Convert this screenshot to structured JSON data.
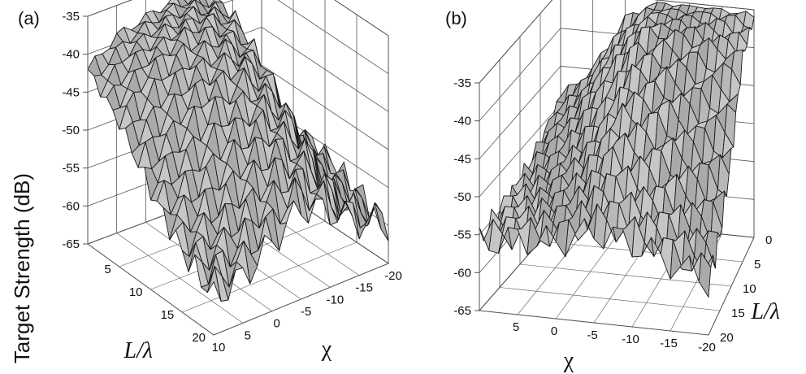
{
  "figure": {
    "ylabel": "Target Strength (dB)",
    "panels": [
      "(a)",
      "(b)"
    ]
  },
  "colors": {
    "surface": "#b8b8b8",
    "mesh": "#1a1a1a",
    "grid": "#555555",
    "text": "#111111"
  },
  "chart_data": [
    {
      "type": "surface",
      "panel": "(a)",
      "zlabel": "Target Strength (dB)",
      "xlabel": "χ",
      "ylabel": "L/λ",
      "chi_ticks": [
        "10",
        "5",
        "0",
        "-5",
        "-10",
        "-15",
        "-20"
      ],
      "l_ticks": [
        "5",
        "10",
        "15",
        "20"
      ],
      "z_ticks": [
        "-35",
        "-40",
        "-45",
        "-50",
        "-55",
        "-60",
        "-65"
      ],
      "chi_range": [
        10,
        -20
      ],
      "l_range": [
        0,
        20
      ],
      "z_range": [
        -65,
        -35
      ],
      "chi": [
        10,
        5,
        0,
        -5,
        -10,
        -15,
        -20
      ],
      "l": [
        0,
        5,
        10,
        15,
        20
      ],
      "z": [
        [
          -42,
          -39,
          -38,
          -37,
          -37,
          -49,
          -53
        ],
        [
          -46,
          -41,
          -38,
          -37,
          -38,
          -51,
          -55
        ],
        [
          -52,
          -47,
          -42,
          -40,
          -42,
          -53,
          -56
        ],
        [
          -57,
          -54,
          -49,
          -46,
          -48,
          -56,
          -58
        ],
        [
          -60,
          -59,
          -56,
          -53,
          -55,
          -58,
          -60
        ]
      ]
    },
    {
      "type": "surface",
      "panel": "(b)",
      "zlabel": "Target Strength (dB)",
      "xlabel": "χ",
      "ylabel": "L/λ",
      "chi_ticks": [
        "5",
        "0",
        "-5",
        "-10",
        "-15",
        "-20"
      ],
      "l_ticks": [
        "0",
        "5",
        "10",
        "15",
        "20"
      ],
      "z_ticks": [
        "-35",
        "-40",
        "-45",
        "-50",
        "-55",
        "-60",
        "-65"
      ],
      "chi_range": [
        10,
        -20
      ],
      "l_range": [
        0,
        20
      ],
      "z_range": [
        -65,
        -35
      ],
      "chi": [
        10,
        5,
        0,
        -5,
        -10,
        -15,
        -20
      ],
      "l": [
        0,
        5,
        10,
        15,
        20
      ],
      "z": [
        [
          -49,
          -45,
          -38,
          -35,
          -35,
          -35,
          -36
        ],
        [
          -52,
          -48,
          -42,
          -36,
          -36,
          -37,
          -38
        ],
        [
          -54,
          -52,
          -48,
          -42,
          -42,
          -45,
          -48
        ],
        [
          -55,
          -54,
          -52,
          -48,
          -50,
          -52,
          -55
        ],
        [
          -56,
          -55,
          -55,
          -53,
          -54,
          -56,
          -58
        ]
      ]
    }
  ]
}
